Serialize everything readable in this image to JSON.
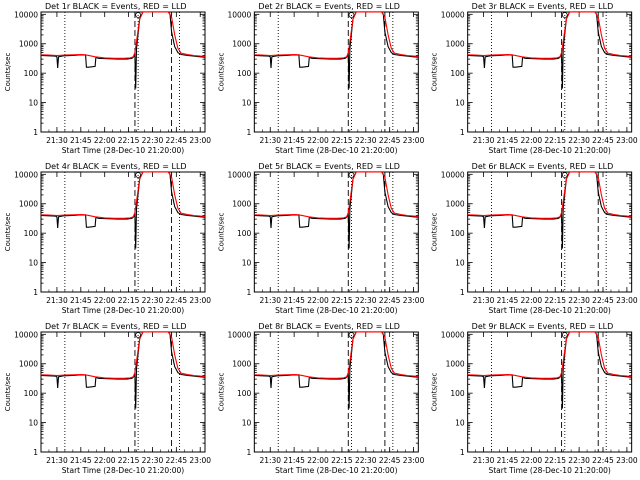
{
  "chart_data": {
    "type": "line",
    "shared": {
      "xlabel": "Start Time (28-Dec-10 21:20:00)",
      "ylabel": "Counts/sec",
      "x_ticks": [
        "21:30",
        "21:45",
        "22:00",
        "22:15",
        "22:30",
        "22:45",
        "23:00"
      ],
      "x_tick_minutes": [
        10,
        25,
        40,
        55,
        70,
        85,
        100
      ],
      "xlim_minutes": [
        0,
        103
      ],
      "yscale": "log",
      "ylim": [
        1,
        12000
      ],
      "y_ticks": [
        "1",
        "10",
        "100",
        "1000",
        "10000"
      ],
      "y_tick_values": [
        1,
        10,
        100,
        1000,
        10000
      ],
      "series_colors": {
        "events": "#000000",
        "lld": "#ff0000"
      },
      "dotted_verticals_minutes": [
        15,
        61,
        87
      ],
      "dashed_verticals_minutes": [
        59,
        82
      ]
    },
    "panels": [
      {
        "title": "Det 1r BLACK = Events, RED = LLD"
      },
      {
        "title": "Det 2r BLACK = Events, RED = LLD"
      },
      {
        "title": "Det 3r BLACK = Events, RED = LLD"
      },
      {
        "title": "Det 4r BLACK = Events, RED = LLD"
      },
      {
        "title": "Det 5r BLACK = Events, RED = LLD"
      },
      {
        "title": "Det 6r BLACK = Events, RED = LLD"
      },
      {
        "title": "Det 7r BLACK = Events, RED = LLD"
      },
      {
        "title": "Det 8r BLACK = Events, RED = LLD"
      },
      {
        "title": "Det 9r BLACK = Events, RED = LLD"
      }
    ],
    "events_series": {
      "name": "Events",
      "x_minutes": [
        0,
        5,
        9,
        10,
        10.5,
        11,
        14,
        20,
        25,
        28,
        28.5,
        30,
        34,
        34.5,
        36,
        42,
        48,
        54,
        57,
        58,
        59,
        59.5,
        60,
        62,
        64,
        68,
        72,
        73,
        75,
        76,
        77,
        78,
        79,
        80,
        81,
        82,
        84,
        86,
        88,
        92,
        96,
        100,
        103
      ],
      "y": [
        400,
        390,
        380,
        360,
        150,
        360,
        390,
        400,
        420,
        410,
        160,
        160,
        170,
        350,
        320,
        310,
        300,
        300,
        320,
        350,
        420,
        30,
        700,
        7000,
        12000,
        12000,
        12000,
        12000,
        12000,
        12000,
        12000,
        12000,
        12000,
        12000,
        10000,
        2500,
        800,
        500,
        430,
        400,
        380,
        360,
        350
      ]
    },
    "lld_series": {
      "name": "LLD",
      "x_minutes": [
        0,
        5,
        10,
        15,
        20,
        25,
        28,
        34,
        40,
        46,
        52,
        56,
        58,
        59,
        60,
        62,
        64,
        68,
        72,
        80,
        82,
        84,
        86,
        88,
        92,
        96,
        100,
        103
      ],
      "y": [
        420,
        410,
        400,
        410,
        420,
        430,
        420,
        360,
        330,
        320,
        320,
        330,
        360,
        500,
        1200,
        7000,
        12000,
        12000,
        12000,
        12000,
        8000,
        2000,
        700,
        480,
        430,
        400,
        380,
        370
      ]
    }
  }
}
